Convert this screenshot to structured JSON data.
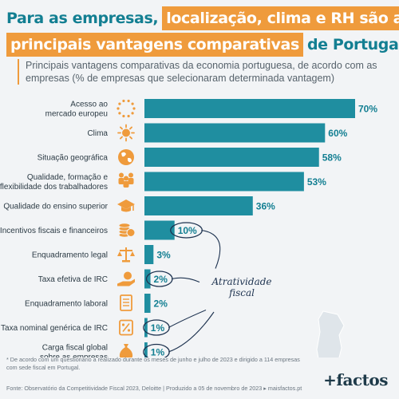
{
  "title": {
    "line1_a": "Para as empresas,",
    "line1_b": "localização, clima e RH são as",
    "line2_a": "principais vantagens comparativas",
    "line2_b": "de Portugal"
  },
  "subtitle": "Principais vantagens comparativas da economia portuguesa, de acordo com as empresas (% de empresas que selecionaram determinada vantagem)",
  "annotation": "Atratividade fiscal",
  "footnote": "* De acordo com um questionário a realizado durante os meses de junho e julho de 2023 e dirigido a 114 empresas com sede fiscal em Portugal.",
  "source": "Fonte: Observatório da Competitividade Fiscal 2023, Deloitte | Produzido a 05 de novembro de 2023 ▸ maisfactos.pt",
  "logo": "+factos",
  "colors": {
    "bar": "#1f8ea0",
    "accent": "#ef9b3c",
    "title": "#137f92",
    "dark": "#1e3350"
  },
  "chart_data": {
    "type": "bar",
    "orientation": "horizontal",
    "categories": [
      [
        "Acesso ao",
        "mercado europeu"
      ],
      [
        "Clima"
      ],
      [
        "Situação geográfica"
      ],
      [
        "Qualidade, formação e",
        "flexibilidade dos trabalhadores"
      ],
      [
        "Qualidade do ensino superior"
      ],
      [
        "Incentivos fiscais e financeiros"
      ],
      [
        "Enquadramento legal"
      ],
      [
        "Taxa efetiva de IRC"
      ],
      [
        "Enquadramento laboral"
      ],
      [
        "Taxa nominal genérica de IRC"
      ],
      [
        "Carga fiscal global",
        "sobre as empresas"
      ]
    ],
    "values": [
      70,
      60,
      58,
      53,
      36,
      10,
      3,
      2,
      2,
      1,
      1
    ],
    "value_labels": [
      "70%",
      "60%",
      "58%",
      "53%",
      "36%",
      "10%",
      "3%",
      "2%",
      "2%",
      "1%",
      "1%"
    ],
    "icons": [
      "europe-stars-icon",
      "sun-icon",
      "globe-icon",
      "workers-icon",
      "graduation-cap-icon",
      "coins-icon",
      "scales-icon",
      "hand-money-icon",
      "document-icon",
      "percent-tag-icon",
      "money-bag-icon"
    ],
    "highlighted": [
      false,
      false,
      false,
      false,
      false,
      true,
      false,
      true,
      false,
      true,
      true
    ],
    "xlim": [
      0,
      70
    ]
  }
}
